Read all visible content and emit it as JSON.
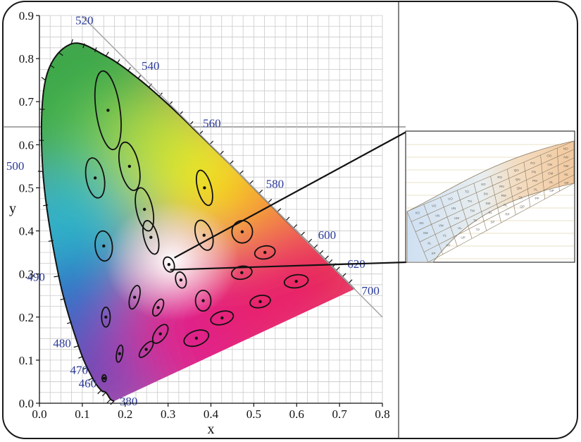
{
  "chart_data": {
    "type": "scatter",
    "title": "",
    "xlabel": "x",
    "ylabel": "y",
    "xlim": [
      0.0,
      0.8
    ],
    "ylim": [
      0.0,
      0.9
    ],
    "grid": true,
    "x_ticks": [
      "0.0",
      "0.1",
      "0.2",
      "0.3",
      "0.4",
      "0.5",
      "0.6",
      "0.7",
      "0.8"
    ],
    "y_ticks": [
      "0.0",
      "0.1",
      "0.2",
      "0.3",
      "0.4",
      "0.5",
      "0.6",
      "0.7",
      "0.8",
      "0.9"
    ],
    "locus": [
      [
        0.174,
        0.005
      ],
      [
        0.166,
        0.009
      ],
      [
        0.155,
        0.025
      ],
      [
        0.144,
        0.03
      ],
      [
        0.124,
        0.058
      ],
      [
        0.091,
        0.133
      ],
      [
        0.045,
        0.295
      ],
      [
        0.008,
        0.538
      ],
      [
        0.014,
        0.75
      ],
      [
        0.074,
        0.834
      ],
      [
        0.155,
        0.806
      ],
      [
        0.23,
        0.754
      ],
      [
        0.302,
        0.692
      ],
      [
        0.373,
        0.624
      ],
      [
        0.444,
        0.555
      ],
      [
        0.512,
        0.487
      ],
      [
        0.575,
        0.424
      ],
      [
        0.627,
        0.373
      ],
      [
        0.666,
        0.334
      ],
      [
        0.692,
        0.308
      ],
      [
        0.735,
        0.265
      ]
    ],
    "wavelength_labels": [
      {
        "label": "380",
        "x": 0.174,
        "y": 0.005
      },
      {
        "label": "460",
        "x": 0.144,
        "y": 0.03
      },
      {
        "label": "470",
        "x": 0.124,
        "y": 0.058
      },
      {
        "label": "480",
        "x": 0.091,
        "y": 0.133
      },
      {
        "label": "490",
        "x": 0.045,
        "y": 0.295
      },
      {
        "label": "500",
        "x": 0.008,
        "y": 0.538
      },
      {
        "label": "520",
        "x": 0.074,
        "y": 0.834
      },
      {
        "label": "540",
        "x": 0.23,
        "y": 0.754
      },
      {
        "label": "560",
        "x": 0.373,
        "y": 0.624
      },
      {
        "label": "580",
        "x": 0.512,
        "y": 0.487
      },
      {
        "label": "600",
        "x": 0.627,
        "y": 0.373
      },
      {
        "label": "620",
        "x": 0.692,
        "y": 0.308
      },
      {
        "label": "700",
        "x": 0.735,
        "y": 0.265
      }
    ],
    "ellipses": [
      {
        "x": 0.16,
        "y": 0.68,
        "rx": 0.028,
        "ry": 0.092,
        "angle": -8
      },
      {
        "x": 0.21,
        "y": 0.55,
        "rx": 0.022,
        "ry": 0.057,
        "angle": -12
      },
      {
        "x": 0.13,
        "y": 0.523,
        "rx": 0.021,
        "ry": 0.047,
        "angle": -10
      },
      {
        "x": 0.15,
        "y": 0.365,
        "rx": 0.02,
        "ry": 0.035,
        "angle": -5
      },
      {
        "x": 0.245,
        "y": 0.45,
        "rx": 0.019,
        "ry": 0.051,
        "angle": -12
      },
      {
        "x": 0.26,
        "y": 0.385,
        "rx": 0.016,
        "ry": 0.04,
        "angle": -15
      },
      {
        "x": 0.385,
        "y": 0.5,
        "rx": 0.016,
        "ry": 0.042,
        "angle": -15
      },
      {
        "x": 0.384,
        "y": 0.39,
        "rx": 0.019,
        "ry": 0.036,
        "angle": -18
      },
      {
        "x": 0.473,
        "y": 0.398,
        "rx": 0.024,
        "ry": 0.026,
        "angle": 0
      },
      {
        "x": 0.526,
        "y": 0.35,
        "rx": 0.024,
        "ry": 0.015,
        "angle": -10
      },
      {
        "x": 0.302,
        "y": 0.322,
        "rx": 0.012,
        "ry": 0.018,
        "angle": -20
      },
      {
        "x": 0.33,
        "y": 0.286,
        "rx": 0.012,
        "ry": 0.019,
        "angle": -15
      },
      {
        "x": 0.472,
        "y": 0.303,
        "rx": 0.024,
        "ry": 0.015,
        "angle": -10
      },
      {
        "x": 0.599,
        "y": 0.283,
        "rx": 0.028,
        "ry": 0.015,
        "angle": -8
      },
      {
        "x": 0.222,
        "y": 0.246,
        "rx": 0.011,
        "ry": 0.028,
        "angle": 15
      },
      {
        "x": 0.277,
        "y": 0.222,
        "rx": 0.01,
        "ry": 0.021,
        "angle": 25
      },
      {
        "x": 0.382,
        "y": 0.238,
        "rx": 0.018,
        "ry": 0.024,
        "angle": 0
      },
      {
        "x": 0.515,
        "y": 0.236,
        "rx": 0.024,
        "ry": 0.014,
        "angle": -12
      },
      {
        "x": 0.155,
        "y": 0.2,
        "rx": 0.01,
        "ry": 0.023,
        "angle": 0
      },
      {
        "x": 0.282,
        "y": 0.161,
        "rx": 0.013,
        "ry": 0.025,
        "angle": 35
      },
      {
        "x": 0.426,
        "y": 0.198,
        "rx": 0.027,
        "ry": 0.015,
        "angle": -15
      },
      {
        "x": 0.249,
        "y": 0.125,
        "rx": 0.009,
        "ry": 0.023,
        "angle": 40
      },
      {
        "x": 0.366,
        "y": 0.151,
        "rx": 0.03,
        "ry": 0.017,
        "angle": -20
      },
      {
        "x": 0.187,
        "y": 0.115,
        "rx": 0.007,
        "ry": 0.02,
        "angle": 10
      },
      {
        "x": 0.151,
        "y": 0.058,
        "rx": 0.005,
        "ry": 0.008,
        "angle": 0
      }
    ],
    "zoom_source": {
      "x": 0.305,
      "y": 0.323
    },
    "inset_cells": [
      "XO",
      "VO",
      "UO",
      "TO",
      "SO",
      "RO",
      "QO",
      "PO",
      "OO",
      "NO",
      "XN",
      "VN",
      "UN",
      "TN",
      "SN",
      "RN",
      "QN",
      "PN",
      "ON",
      "NN",
      "XM",
      "VM",
      "UM",
      "TM",
      "SM",
      "RM",
      "QM",
      "PM",
      "OM",
      "NM",
      "XL",
      "VL",
      "UL",
      "TL",
      "SL",
      "RL",
      "QL",
      "PL",
      "OL",
      "NL",
      "XP",
      "VP",
      "UP",
      "TP",
      "SP",
      "RP",
      "QP",
      "PP",
      "OP",
      "NP"
    ]
  }
}
